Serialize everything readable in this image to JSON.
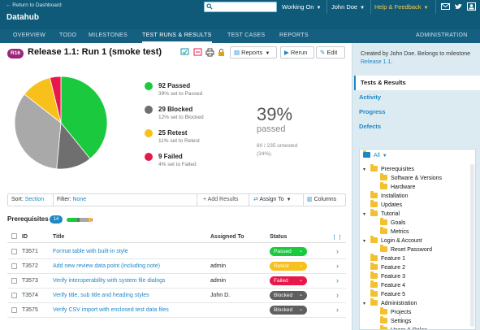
{
  "topbar": {
    "back_link": "← Return to Dashboard",
    "app_title": "Datahub",
    "search": {
      "value": "",
      "placeholder": ""
    },
    "working_on": "Working On",
    "user_name": "John Doe",
    "help": "Help & Feedback"
  },
  "nav": {
    "items": [
      "OVERVIEW",
      "TODO",
      "MILESTONES",
      "TEST RUNS & RESULTS",
      "TEST CASES",
      "REPORTS"
    ],
    "active_index": 3,
    "admin": "ADMINISTRATION"
  },
  "run": {
    "badge": "R16",
    "title": "Release 1.1: Run 1 (smoke test)",
    "reports_label": "Reports",
    "rerun_label": "Rerun",
    "edit_label": "Edit"
  },
  "chart_data": {
    "type": "pie",
    "title": "",
    "slices": [
      {
        "label": "Passed",
        "value": 92,
        "color": "#1bc93f"
      },
      {
        "label": "Blocked",
        "value": 29,
        "color": "#6f6f6f"
      },
      {
        "label": "Untested",
        "value": 80,
        "color": "#a9a9a9"
      },
      {
        "label": "Retest",
        "value": 25,
        "color": "#f7c01b"
      },
      {
        "label": "Failed",
        "value": 9,
        "color": "#e8194a"
      }
    ]
  },
  "legend": [
    {
      "heading": "92 Passed",
      "sub": "39% set to Passed",
      "color": "#1bc93f"
    },
    {
      "heading": "29 Blocked",
      "sub": "12% set to Blocked",
      "color": "#6f6f6f"
    },
    {
      "heading": "25 Retest",
      "sub": "11% set to Retest",
      "color": "#f7c01b"
    },
    {
      "heading": "9 Failed",
      "sub": "4% set to Failed",
      "color": "#e8194a"
    }
  ],
  "summary": {
    "percent": "39%",
    "label": "passed",
    "untested": "80 / 235 untested (34%)."
  },
  "filterbar": {
    "sort_label": "Sort:",
    "sort_value": "Section",
    "filter_label": "Filter:",
    "filter_value": "None",
    "add_results": "Add Results",
    "assign_to": "Assign To",
    "columns": "Columns"
  },
  "section": {
    "name": "Prerequisites",
    "count": "14"
  },
  "table": {
    "headers": {
      "id": "ID",
      "title": "Title",
      "assigned": "Assigned To",
      "status": "Status"
    },
    "rows": [
      {
        "id": "T3571",
        "title": "Format table with built-in style",
        "assigned": "",
        "status": "Passed",
        "color": "#1bc93f"
      },
      {
        "id": "T3572",
        "title": "Add new review data point (including note)",
        "assigned": "admin",
        "status": "Retest",
        "color": "#f7c01b"
      },
      {
        "id": "T3573",
        "title": "Verify interoperability with system file dialogs",
        "assigned": "admin",
        "status": "Failed",
        "color": "#e8194a"
      },
      {
        "id": "T3574",
        "title": "Verify title, sub title and heading styles",
        "assigned": "John D.",
        "status": "Blocked",
        "color": "#5f5f5f"
      },
      {
        "id": "T3575",
        "title": "Verify CSV import with enclosed test data files",
        "assigned": "",
        "status": "Blocked",
        "color": "#5f5f5f"
      }
    ]
  },
  "sidebar": {
    "created_by": "Created by John Doe. Belongs to milestone",
    "milestone": "Release 1.1",
    "links": [
      "Tests & Results",
      "Activity",
      "Progress",
      "Defects"
    ],
    "active_index": 0,
    "tree_all": "All",
    "tree": [
      {
        "label": "Prerequisites",
        "level": 0,
        "toggle": "▾"
      },
      {
        "label": "Software & Versions",
        "level": 1,
        "toggle": ""
      },
      {
        "label": "Hardware",
        "level": 1,
        "toggle": ""
      },
      {
        "label": "Installation",
        "level": 0,
        "toggle": ""
      },
      {
        "label": "Updates",
        "level": 0,
        "toggle": ""
      },
      {
        "label": "Tutorial",
        "level": 0,
        "toggle": "▾"
      },
      {
        "label": "Goals",
        "level": 1,
        "toggle": ""
      },
      {
        "label": "Metrics",
        "level": 1,
        "toggle": ""
      },
      {
        "label": "Login & Account",
        "level": 0,
        "toggle": "▾"
      },
      {
        "label": "Reset Password",
        "level": 1,
        "toggle": ""
      },
      {
        "label": "Feature 1",
        "level": 0,
        "toggle": ""
      },
      {
        "label": "Feature 2",
        "level": 0,
        "toggle": ""
      },
      {
        "label": "Feature 3",
        "level": 0,
        "toggle": ""
      },
      {
        "label": "Feature 4",
        "level": 0,
        "toggle": ""
      },
      {
        "label": "Feature 5",
        "level": 0,
        "toggle": ""
      },
      {
        "label": "Administration",
        "level": 0,
        "toggle": "▾"
      },
      {
        "label": "Projects",
        "level": 1,
        "toggle": ""
      },
      {
        "label": "Settings",
        "level": 1,
        "toggle": ""
      },
      {
        "label": "Users & Roles",
        "level": 1,
        "toggle": "▸"
      }
    ]
  }
}
